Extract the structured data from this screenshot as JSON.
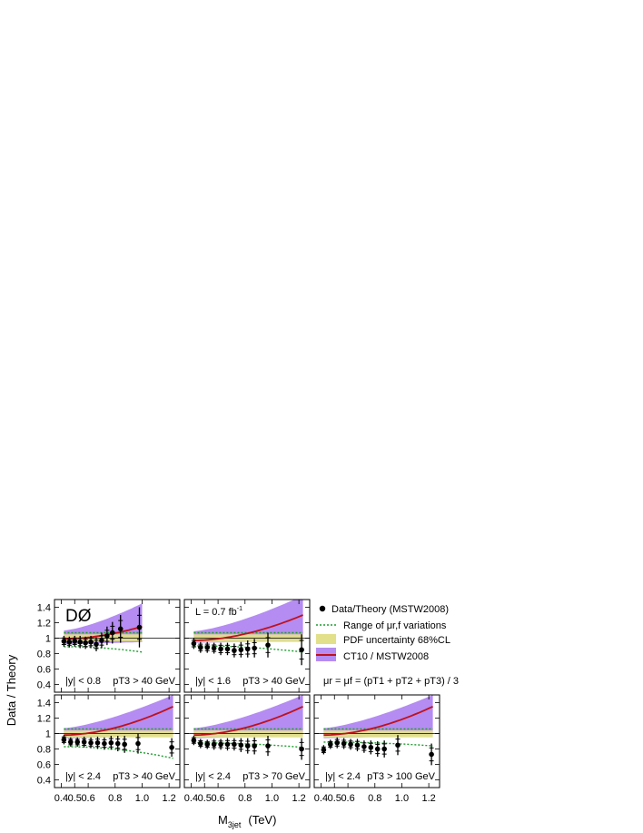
{
  "figure": {
    "ylabel": "Data / Theory",
    "xlabel_main": "M",
    "xlabel_sub": "3jet",
    "xlabel_unit": "(TeV)",
    "experiment": "DØ",
    "luminosity_main": "L = 0.7 fb",
    "luminosity_sup": "-1",
    "scale_formula": "μr = μf = (pT1 + pT2 + pT3) / 3",
    "colors": {
      "ct10_band": "#b48cf2",
      "ct10_line": "#c0101a",
      "pdf_band": "#e2e08a",
      "mu_variation": "#1e9e2e",
      "data": "#000000"
    }
  },
  "legend": {
    "data": "Data/Theory (MSTW2008)",
    "mu": "Range of μr,f variations",
    "pdf": "PDF uncertainty 68%CL",
    "ct10": "CT10 / MSTW2008"
  },
  "chart_data": [
    {
      "type": "scatter",
      "panel": "top-left",
      "cut_y": "|y| < 0.8",
      "cut_pt": "pT3 > 40 GeV",
      "xlim": [
        0.35,
        1.28
      ],
      "ylim": [
        0.3,
        1.5
      ],
      "x_ticks": [],
      "y_ticks": [
        "1.4",
        "1.2",
        "1",
        "0.8",
        "0.6",
        "0.4"
      ],
      "data_x": [
        0.42,
        0.46,
        0.5,
        0.54,
        0.58,
        0.62,
        0.66,
        0.7,
        0.74,
        0.78,
        0.84,
        0.98
      ],
      "data_y": [
        0.96,
        0.95,
        0.96,
        0.95,
        0.94,
        0.95,
        0.92,
        0.97,
        1.03,
        1.07,
        1.12,
        1.14
      ],
      "data_err": [
        0.07,
        0.07,
        0.07,
        0.08,
        0.08,
        0.08,
        0.09,
        0.1,
        0.12,
        0.14,
        0.18,
        0.26
      ],
      "theory_x": [
        0.42,
        1.0
      ],
      "ct10_band_lo": [
        0.92,
        0.95
      ],
      "ct10_band_hi": [
        1.1,
        1.45
      ],
      "ct10_line": [
        0.99,
        1.15
      ],
      "pdf_band": [
        0.96,
        1.05
      ],
      "mu_lo": [
        0.89,
        0.82
      ],
      "mu_hi": [
        1.07,
        1.07
      ]
    },
    {
      "type": "scatter",
      "panel": "top-middle",
      "cut_y": "|y| < 1.6",
      "cut_pt": "pT3 > 40 GeV",
      "xlim": [
        0.35,
        1.28
      ],
      "ylim": [
        0.3,
        1.5
      ],
      "x_ticks": [],
      "y_ticks": [],
      "data_x": [
        0.42,
        0.47,
        0.52,
        0.57,
        0.62,
        0.67,
        0.72,
        0.77,
        0.82,
        0.87,
        0.97,
        1.22
      ],
      "data_y": [
        0.93,
        0.88,
        0.88,
        0.87,
        0.86,
        0.86,
        0.84,
        0.85,
        0.86,
        0.87,
        0.91,
        0.85
      ],
      "data_err": [
        0.07,
        0.07,
        0.07,
        0.07,
        0.08,
        0.08,
        0.09,
        0.1,
        0.11,
        0.12,
        0.16,
        0.2
      ],
      "theory_x": [
        0.42,
        1.23
      ],
      "ct10_band_lo": [
        0.94,
        0.97
      ],
      "ct10_band_hi": [
        1.09,
        1.55
      ],
      "ct10_line": [
        0.97,
        1.3
      ],
      "pdf_band": [
        0.95,
        1.05
      ],
      "mu_lo": [
        0.9,
        0.82
      ],
      "mu_hi": [
        1.07,
        1.07
      ]
    },
    {
      "type": "scatter",
      "panel": "bottom-left",
      "cut_y": "|y| < 2.4",
      "cut_pt": "pT3 > 40 GeV",
      "xlim": [
        0.35,
        1.28
      ],
      "ylim": [
        0.3,
        1.5
      ],
      "x_ticks": [
        "0.4",
        "0.5",
        "0.6",
        "0.8",
        "1.0",
        "1.2"
      ],
      "y_ticks": [
        "1.4",
        "1.2",
        "1",
        "0.8",
        "0.6",
        "0.4"
      ],
      "data_x": [
        0.42,
        0.47,
        0.52,
        0.57,
        0.62,
        0.67,
        0.72,
        0.77,
        0.82,
        0.87,
        0.97,
        1.22
      ],
      "data_y": [
        0.92,
        0.89,
        0.89,
        0.89,
        0.88,
        0.88,
        0.87,
        0.88,
        0.87,
        0.86,
        0.87,
        0.82
      ],
      "data_err": [
        0.06,
        0.06,
        0.06,
        0.07,
        0.07,
        0.08,
        0.08,
        0.09,
        0.1,
        0.11,
        0.13,
        0.12
      ],
      "theory_x": [
        0.42,
        1.23
      ],
      "ct10_band_lo": [
        0.94,
        0.98
      ],
      "ct10_band_hi": [
        1.07,
        1.5
      ],
      "ct10_line": [
        0.98,
        1.35
      ],
      "pdf_band": [
        0.95,
        1.04
      ],
      "mu_lo": [
        0.83,
        0.68
      ],
      "mu_hi": [
        1.06,
        1.06
      ]
    },
    {
      "type": "scatter",
      "panel": "bottom-middle",
      "cut_y": "|y| < 2.4",
      "cut_pt": "pT3 > 70 GeV",
      "xlim": [
        0.35,
        1.28
      ],
      "ylim": [
        0.3,
        1.5
      ],
      "x_ticks": [
        "0.4",
        "0.5",
        "0.6",
        "0.8",
        "1.0",
        "1.2"
      ],
      "y_ticks": [],
      "data_x": [
        0.42,
        0.47,
        0.52,
        0.57,
        0.62,
        0.67,
        0.72,
        0.77,
        0.82,
        0.87,
        0.97,
        1.22
      ],
      "data_y": [
        0.91,
        0.87,
        0.86,
        0.86,
        0.86,
        0.86,
        0.86,
        0.85,
        0.84,
        0.84,
        0.84,
        0.8
      ],
      "data_err": [
        0.06,
        0.06,
        0.06,
        0.07,
        0.07,
        0.08,
        0.08,
        0.09,
        0.1,
        0.11,
        0.13,
        0.14
      ],
      "theory_x": [
        0.42,
        1.23
      ],
      "ct10_band_lo": [
        0.94,
        0.98
      ],
      "ct10_band_hi": [
        1.07,
        1.5
      ],
      "ct10_line": [
        0.98,
        1.35
      ],
      "pdf_band": [
        0.95,
        1.04
      ],
      "mu_lo": [
        0.88,
        0.82
      ],
      "mu_hi": [
        1.06,
        1.06
      ]
    },
    {
      "type": "scatter",
      "panel": "bottom-right",
      "cut_y": "|y| < 2.4",
      "cut_pt": "pT3 > 100 GeV",
      "xlim": [
        0.35,
        1.28
      ],
      "ylim": [
        0.3,
        1.5
      ],
      "x_ticks": [
        "0.4",
        "0.5",
        "0.6",
        "0.8",
        "1.0",
        "1.2"
      ],
      "y_ticks": [],
      "data_x": [
        0.42,
        0.47,
        0.52,
        0.57,
        0.62,
        0.67,
        0.72,
        0.77,
        0.82,
        0.87,
        0.97,
        1.22
      ],
      "data_y": [
        0.79,
        0.86,
        0.88,
        0.87,
        0.86,
        0.85,
        0.83,
        0.82,
        0.8,
        0.8,
        0.85,
        0.73
      ],
      "data_err": [
        0.06,
        0.06,
        0.07,
        0.07,
        0.07,
        0.08,
        0.08,
        0.09,
        0.1,
        0.11,
        0.13,
        0.14
      ],
      "theory_x": [
        0.42,
        1.23
      ],
      "ct10_band_lo": [
        0.94,
        0.98
      ],
      "ct10_band_hi": [
        1.07,
        1.5
      ],
      "ct10_line": [
        0.98,
        1.35
      ],
      "pdf_band": [
        0.95,
        1.04
      ],
      "mu_lo": [
        0.89,
        0.84
      ],
      "mu_hi": [
        1.06,
        1.06
      ]
    }
  ]
}
